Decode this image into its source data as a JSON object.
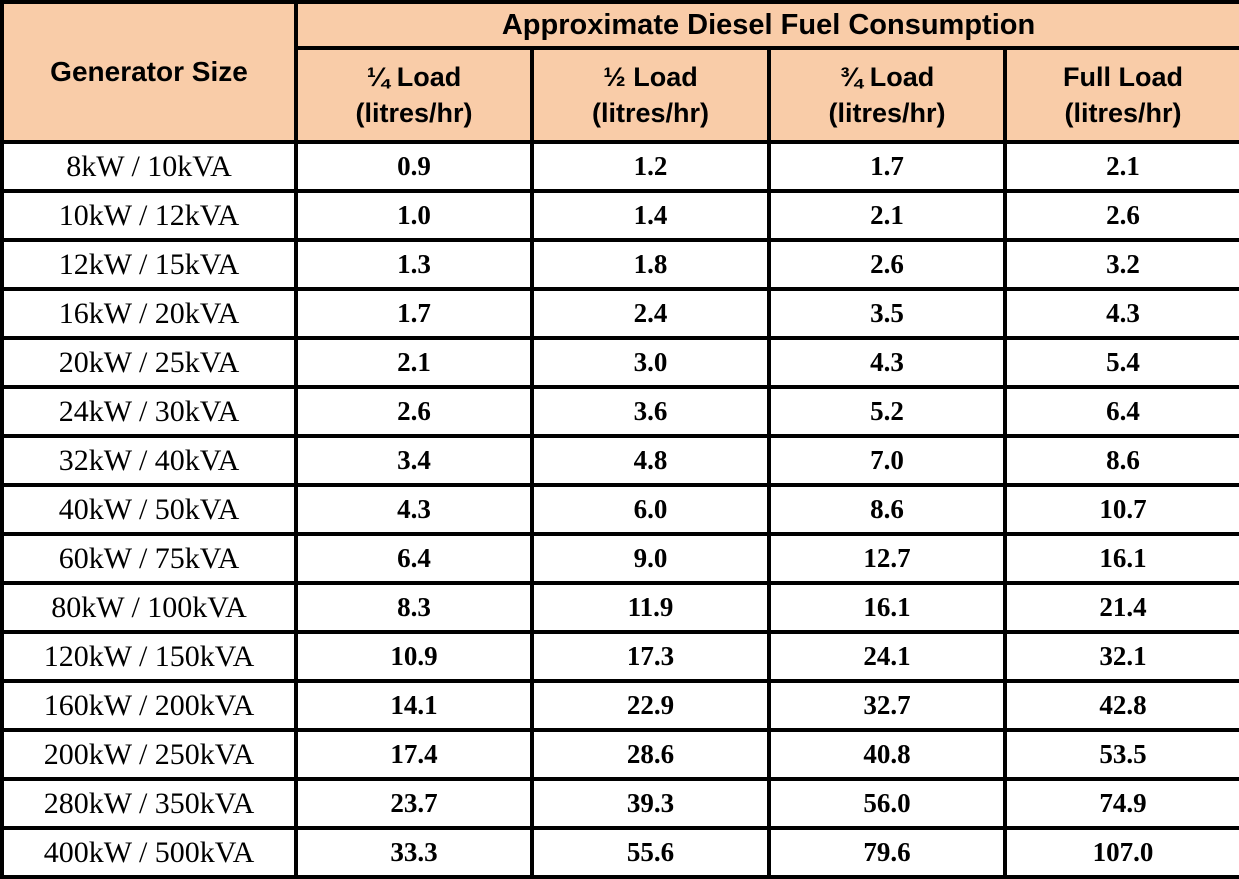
{
  "table": {
    "corner_header": "Generator Size",
    "main_header": "Approximate Diesel Fuel Consumption",
    "load_headers": [
      {
        "line1": "¼ Load",
        "line2": "(litres/hr)"
      },
      {
        "line1": "½ Load",
        "line2": "(litres/hr)"
      },
      {
        "line1": "¾ Load",
        "line2": "(litres/hr)"
      },
      {
        "line1": "Full Load",
        "line2": "(litres/hr)"
      }
    ],
    "rows": [
      {
        "size": "8kW / 10kVA",
        "values": [
          "0.9",
          "1.2",
          "1.7",
          "2.1"
        ]
      },
      {
        "size": "10kW / 12kVA",
        "values": [
          "1.0",
          "1.4",
          "2.1",
          "2.6"
        ]
      },
      {
        "size": "12kW / 15kVA",
        "values": [
          "1.3",
          "1.8",
          "2.6",
          "3.2"
        ]
      },
      {
        "size": "16kW / 20kVA",
        "values": [
          "1.7",
          "2.4",
          "3.5",
          "4.3"
        ]
      },
      {
        "size": "20kW / 25kVA",
        "values": [
          "2.1",
          "3.0",
          "4.3",
          "5.4"
        ]
      },
      {
        "size": "24kW / 30kVA",
        "values": [
          "2.6",
          "3.6",
          "5.2",
          "6.4"
        ]
      },
      {
        "size": "32kW / 40kVA",
        "values": [
          "3.4",
          "4.8",
          "7.0",
          "8.6"
        ]
      },
      {
        "size": "40kW / 50kVA",
        "values": [
          "4.3",
          "6.0",
          "8.6",
          "10.7"
        ]
      },
      {
        "size": "60kW / 75kVA",
        "values": [
          "6.4",
          "9.0",
          "12.7",
          "16.1"
        ]
      },
      {
        "size": "80kW / 100kVA",
        "values": [
          "8.3",
          "11.9",
          "16.1",
          "21.4"
        ]
      },
      {
        "size": "120kW / 150kVA",
        "values": [
          "10.9",
          "17.3",
          "24.1",
          "32.1"
        ]
      },
      {
        "size": "160kW / 200kVA",
        "values": [
          "14.1",
          "22.9",
          "32.7",
          "42.8"
        ]
      },
      {
        "size": "200kW / 250kVA",
        "values": [
          "17.4",
          "28.6",
          "40.8",
          "53.5"
        ]
      },
      {
        "size": "280kW / 350kVA",
        "values": [
          "23.7",
          "39.3",
          "56.0",
          "74.9"
        ]
      },
      {
        "size": "400kW / 500kVA",
        "values": [
          "33.3",
          "55.6",
          "79.6",
          "107.0"
        ]
      }
    ],
    "colors": {
      "header_bg": "#F9CCA8",
      "border": "#000000",
      "cell_bg": "#FFFFFF",
      "text": "#000000"
    }
  },
  "chart_data": {
    "type": "table",
    "title": "Approximate Diesel Fuel Consumption",
    "columns": [
      "Generator Size",
      "¼ Load (litres/hr)",
      "½ Load (litres/hr)",
      "¾ Load (litres/hr)",
      "Full Load (litres/hr)"
    ],
    "rows": [
      [
        "8kW / 10kVA",
        0.9,
        1.2,
        1.7,
        2.1
      ],
      [
        "10kW / 12kVA",
        1.0,
        1.4,
        2.1,
        2.6
      ],
      [
        "12kW / 15kVA",
        1.3,
        1.8,
        2.6,
        3.2
      ],
      [
        "16kW / 20kVA",
        1.7,
        2.4,
        3.5,
        4.3
      ],
      [
        "20kW / 25kVA",
        2.1,
        3.0,
        4.3,
        5.4
      ],
      [
        "24kW / 30kVA",
        2.6,
        3.6,
        5.2,
        6.4
      ],
      [
        "32kW / 40kVA",
        3.4,
        4.8,
        7.0,
        8.6
      ],
      [
        "40kW / 50kVA",
        4.3,
        6.0,
        8.6,
        10.7
      ],
      [
        "60kW / 75kVA",
        6.4,
        9.0,
        12.7,
        16.1
      ],
      [
        "80kW / 100kVA",
        8.3,
        11.9,
        16.1,
        21.4
      ],
      [
        "120kW / 150kVA",
        10.9,
        17.3,
        24.1,
        32.1
      ],
      [
        "160kW / 200kVA",
        14.1,
        22.9,
        32.7,
        42.8
      ],
      [
        "200kW / 250kVA",
        17.4,
        28.6,
        40.8,
        53.5
      ],
      [
        "280kW / 350kVA",
        23.7,
        39.3,
        56.0,
        74.9
      ],
      [
        "400kW / 500kVA",
        33.3,
        55.6,
        79.6,
        107.0
      ]
    ]
  }
}
